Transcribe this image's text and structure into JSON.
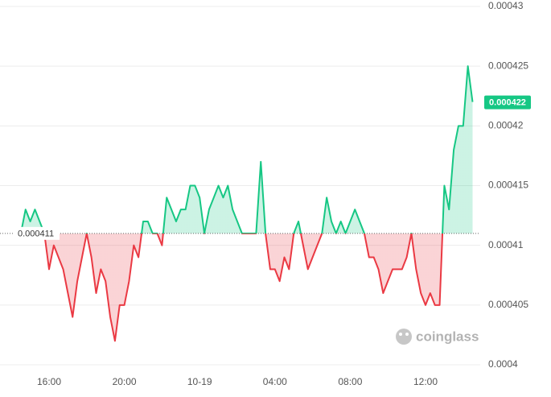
{
  "chart_data": {
    "type": "baseline-area",
    "categories": [
      null,
      null,
      null,
      null,
      null,
      null,
      "16:00",
      null,
      null,
      null,
      null,
      null,
      null,
      null,
      null,
      null,
      null,
      null,
      null,
      null,
      null,
      null,
      "20:00",
      null,
      null,
      null,
      null,
      null,
      null,
      null,
      null,
      null,
      null,
      null,
      null,
      null,
      null,
      null,
      "10-19",
      null,
      null,
      null,
      null,
      null,
      null,
      null,
      null,
      null,
      null,
      null,
      null,
      null,
      null,
      null,
      "04:00",
      null,
      null,
      null,
      null,
      null,
      null,
      null,
      null,
      null,
      null,
      null,
      null,
      null,
      null,
      null,
      "08:00",
      null,
      null,
      null,
      null,
      null,
      null,
      null,
      null,
      null,
      null,
      null,
      null,
      null,
      null,
      null,
      "12:00",
      null,
      null,
      null,
      null,
      null,
      null,
      null,
      null,
      null,
      null
    ],
    "values": [
      0.000411,
      0.000413,
      0.000412,
      0.000413,
      0.000412,
      0.000411,
      0.000408,
      0.00041,
      0.000409,
      0.000408,
      0.000406,
      0.000404,
      0.000407,
      0.000409,
      0.000411,
      0.000409,
      0.000406,
      0.000408,
      0.000407,
      0.000404,
      0.000402,
      0.000405,
      0.000405,
      0.000407,
      0.00041,
      0.000409,
      0.000412,
      0.000412,
      0.000411,
      0.000411,
      0.00041,
      0.000414,
      0.000413,
      0.000412,
      0.000413,
      0.000413,
      0.000415,
      0.000415,
      0.000414,
      0.000411,
      0.000413,
      0.000414,
      0.000415,
      0.000414,
      0.000415,
      0.000413,
      0.000412,
      0.000411,
      0.000411,
      0.000411,
      0.000411,
      0.000417,
      0.000411,
      0.000408,
      0.000408,
      0.000407,
      0.000409,
      0.000408,
      0.000411,
      0.000412,
      0.00041,
      0.000408,
      0.000409,
      0.00041,
      0.000411,
      0.000414,
      0.000412,
      0.000411,
      0.000412,
      0.000411,
      0.000412,
      0.000413,
      0.000412,
      0.000411,
      0.000409,
      0.000409,
      0.000408,
      0.000406,
      0.000407,
      0.000408,
      0.000408,
      0.000408,
      0.000409,
      0.000411,
      0.000408,
      0.000406,
      0.000405,
      0.000406,
      0.000405,
      0.000405,
      0.000415,
      0.000413,
      0.000418,
      0.00042,
      0.00042,
      0.000425,
      0.000422
    ],
    "baseline": 0.000411,
    "up_color": "#16c784",
    "down_color": "#ea3943",
    "ylim": [
      0.0004,
      0.00043
    ],
    "yticks": [
      0.00043,
      0.000425,
      0.00042,
      0.000415,
      0.00041,
      0.000405,
      0.0004
    ],
    "grid": true,
    "watermark": "coinglass"
  }
}
